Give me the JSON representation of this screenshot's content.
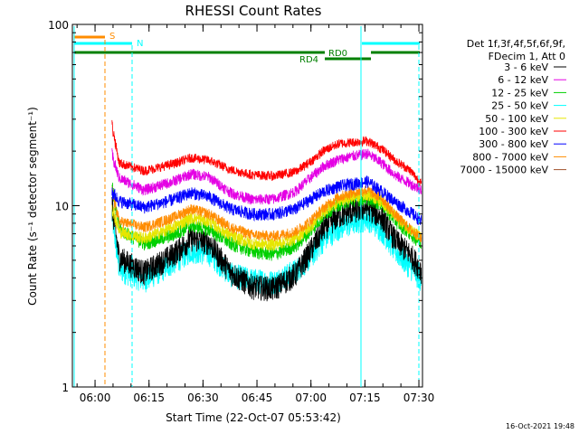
{
  "chart_data": {
    "type": "line",
    "title": "RHESSI Count Rates",
    "xlabel": "Start Time (22-Oct-07 05:53:42)",
    "ylabel": "Count Rate (s⁻¹ detector segment⁻¹)",
    "y_scale": "log",
    "ylim": [
      1,
      100
    ],
    "xlim": [
      "05:53:42",
      "07:31:00"
    ],
    "x_ticks": [
      "06:00",
      "06:15",
      "06:30",
      "06:45",
      "07:00",
      "07:15",
      "07:30"
    ],
    "y_ticks": [
      "1",
      "10",
      "100"
    ],
    "grid": false,
    "legend_header": [
      "Det 1f,3f,4f,5f,6f,9f,",
      "FDecim 1, Att 0"
    ],
    "legend_position": "right",
    "footer": "16-Oct-2021 19:48",
    "x_minutes_since_0553": [
      11,
      13,
      20,
      28,
      33,
      38,
      44,
      50,
      56,
      62,
      66,
      70,
      74,
      78,
      82,
      86,
      90,
      94,
      97
    ],
    "series": [
      {
        "name": "3 - 6 keV",
        "color": "#000000",
        "values": [
          10,
          5.2,
          4.3,
          5.4,
          6.6,
          6.3,
          4.3,
          3.6,
          3.5,
          4.2,
          5.6,
          7.6,
          8.8,
          9.4,
          9.8,
          8.6,
          6.4,
          5.4,
          4.4
        ]
      },
      {
        "name": "6 - 12 keV",
        "color": "#e400e4",
        "values": [
          19,
          14.2,
          12.2,
          13.6,
          15.0,
          14.4,
          11.8,
          10.8,
          10.9,
          12.0,
          14.2,
          16.6,
          18.0,
          18.8,
          19.4,
          17.2,
          14.6,
          13.2,
          12.2
        ]
      },
      {
        "name": "12 - 25 keV",
        "color": "#00d000",
        "values": [
          13,
          7.4,
          6.2,
          6.9,
          7.8,
          7.4,
          6.2,
          5.6,
          5.4,
          6.0,
          7.2,
          9.0,
          10.2,
          10.8,
          11.0,
          10.2,
          8.2,
          7.0,
          6.2
        ]
      },
      {
        "name": "25 - 50 keV",
        "color": "#00ffff",
        "values": [
          9,
          4.5,
          3.9,
          4.9,
          5.7,
          5.5,
          4.2,
          3.9,
          3.8,
          4.4,
          5.2,
          6.6,
          7.6,
          8.1,
          8.6,
          7.4,
          5.6,
          4.6,
          3.9
        ]
      },
      {
        "name": "50 - 100 keV",
        "color": "#e6e600",
        "values": [
          10,
          7.2,
          6.6,
          7.6,
          8.6,
          8.2,
          6.8,
          6.2,
          6.1,
          6.6,
          7.6,
          9.4,
          10.6,
          11.2,
          11.6,
          10.6,
          8.6,
          7.4,
          6.6
        ]
      },
      {
        "name": "100 - 300 keV",
        "color": "#ff0000",
        "values": [
          28,
          17.2,
          15.6,
          17.0,
          18.4,
          17.8,
          15.8,
          14.8,
          14.6,
          15.4,
          17.4,
          20.2,
          22.0,
          22.4,
          22.8,
          20.6,
          17.6,
          15.6,
          13.2
        ]
      },
      {
        "name": "300 - 800 keV",
        "color": "#0000ff",
        "values": [
          12,
          10.6,
          9.8,
          10.8,
          11.8,
          11.2,
          9.6,
          9.0,
          9.0,
          9.6,
          10.8,
          12.0,
          12.8,
          13.2,
          13.6,
          12.0,
          10.4,
          9.2,
          8.2
        ]
      },
      {
        "name": "800 - 7000 keV",
        "color": "#ff8c00",
        "values": [
          12,
          8.2,
          7.6,
          8.6,
          9.6,
          9.0,
          7.6,
          6.9,
          6.8,
          7.2,
          8.2,
          9.8,
          11.2,
          11.8,
          12.2,
          11.0,
          8.8,
          7.4,
          6.6
        ]
      },
      {
        "name": "7000 - 15000 keV",
        "color": "#a0522d",
        "values": [
          5,
          5,
          5,
          5,
          5,
          5,
          5,
          5,
          5,
          5,
          5,
          5,
          5,
          5,
          5,
          5,
          5,
          5,
          5
        ]
      }
    ],
    "annotations": [
      {
        "text": "S",
        "color": "#ff8c00"
      },
      {
        "text": "N",
        "color": "#00ffff"
      },
      {
        "text": "RD0",
        "color": "#008000"
      },
      {
        "text": "RD4",
        "color": "#008000"
      }
    ]
  }
}
